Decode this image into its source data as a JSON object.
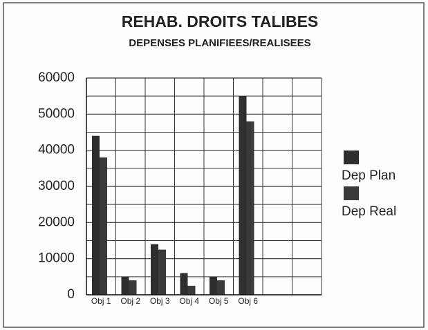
{
  "chart_data": {
    "type": "bar",
    "title": "REHAB. DROITS TALIBES",
    "subtitle": "DEPENSES PLANIFIEES/REALISEES",
    "categories": [
      "Obj 1",
      "Obj 2",
      "Obj 3",
      "Obj 4",
      "Obj 5",
      "Obj 6",
      null,
      null
    ],
    "series": [
      {
        "name": "Dep Plan",
        "color": "#2e2e2e",
        "values": [
          44000,
          5000,
          14000,
          6000,
          5000,
          55000,
          null,
          null
        ]
      },
      {
        "name": "Dep Real",
        "color": "#3a3a3a",
        "values": [
          38000,
          4000,
          12500,
          2500,
          4000,
          48000,
          null,
          null
        ]
      }
    ],
    "ylim": [
      0,
      60000
    ],
    "yticks": [
      0,
      10000,
      20000,
      30000,
      40000,
      50000,
      60000
    ],
    "minor_yticks": [
      5000,
      15000,
      25000,
      35000,
      45000,
      55000
    ],
    "grid": true,
    "legend": "right"
  }
}
